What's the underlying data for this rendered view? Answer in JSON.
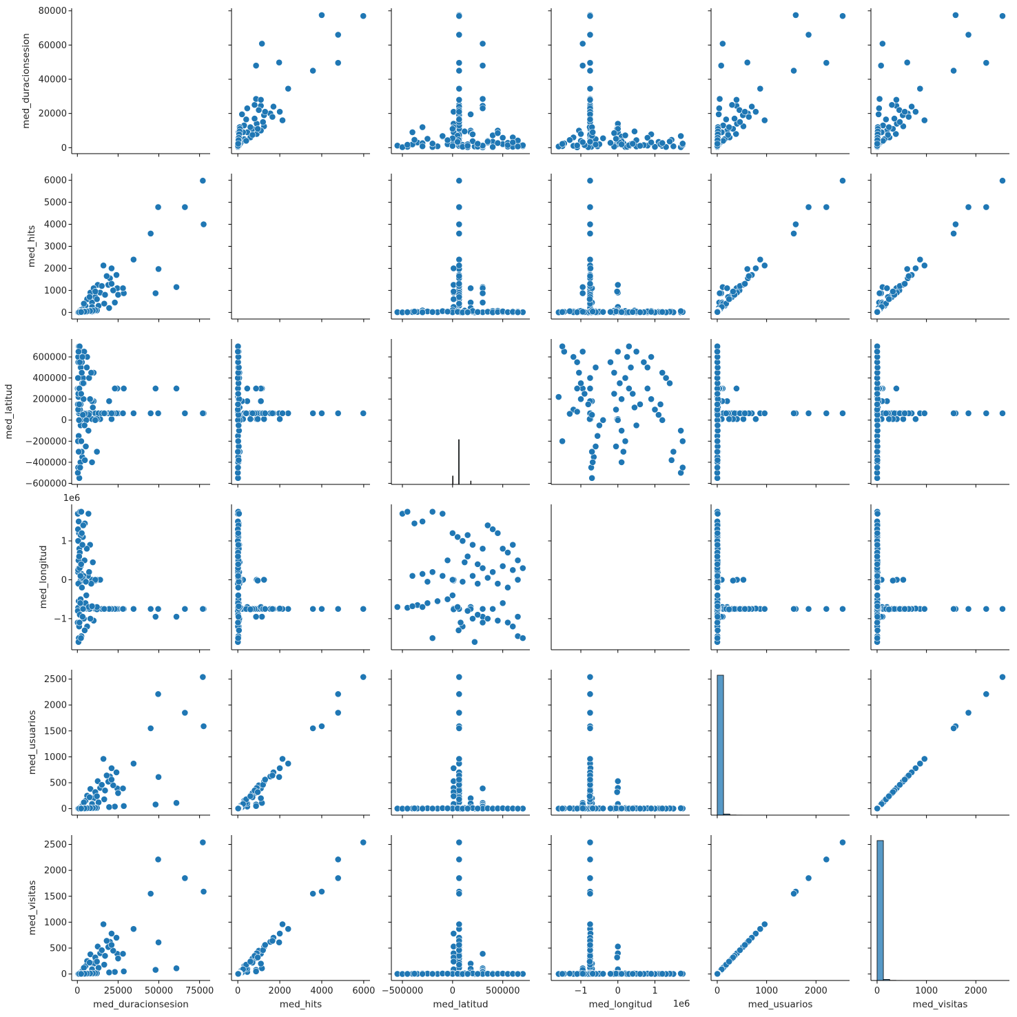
{
  "chart_data": {
    "type": "scatter",
    "title": "",
    "kind": "pairplot",
    "variables": [
      "med_duracionsesion",
      "med_hits",
      "med_latitud",
      "med_longitud",
      "med_usuarios",
      "med_visitas"
    ],
    "colors": {
      "marker": "#1f77b4",
      "marker_edge": "#ffffff",
      "hist": "#1f77b4"
    },
    "axes": {
      "med_duracionsesion": {
        "lim": [
          -3500,
          81500
        ],
        "xticks": [
          0,
          25000,
          50000,
          75000
        ],
        "xtick_labels": [
          "0",
          "25000",
          "50000",
          "75000"
        ],
        "yticks": [
          0,
          20000,
          40000,
          60000,
          80000
        ],
        "ytick_labels": [
          "0",
          "20000",
          "40000",
          "60000",
          "80000"
        ],
        "offset": ""
      },
      "med_hits": {
        "lim": [
          -300,
          6300
        ],
        "xticks": [
          0,
          2000,
          4000,
          6000
        ],
        "xtick_labels": [
          "0",
          "2000",
          "4000",
          "6000"
        ],
        "yticks": [
          0,
          1000,
          2000,
          3000,
          4000,
          5000,
          6000
        ],
        "ytick_labels": [
          "0",
          "1000",
          "2000",
          "3000",
          "4000",
          "5000",
          "6000"
        ],
        "offset": ""
      },
      "med_latitud": {
        "lim": [
          -610000,
          770000
        ],
        "xticks": [
          -500000,
          0,
          500000
        ],
        "xtick_labels": [
          "−500000",
          "0",
          "500000"
        ],
        "yticks": [
          -600000,
          -400000,
          -200000,
          0,
          200000,
          400000,
          600000
        ],
        "ytick_labels": [
          "−600000",
          "−400000",
          "−200000",
          "0",
          "200000",
          "400000",
          "600000"
        ],
        "offset": ""
      },
      "med_longitud": {
        "lim": [
          -1800000,
          1940000
        ],
        "xticks": [
          -1000000,
          0,
          1000000
        ],
        "xtick_labels": [
          "−1",
          "0",
          "1"
        ],
        "yticks": [
          -1000000,
          0,
          1000000
        ],
        "ytick_labels": [
          "−1",
          "0",
          "1"
        ],
        "offset": "1e6"
      },
      "med_usuarios": {
        "lim": [
          -125,
          2680
        ],
        "xticks": [
          0,
          1000,
          2000
        ],
        "xtick_labels": [
          "0",
          "1000",
          "2000"
        ],
        "yticks": [
          0,
          500,
          1000,
          1500,
          2000,
          2500
        ],
        "ytick_labels": [
          "0",
          "500",
          "1000",
          "1500",
          "2000",
          "2500"
        ],
        "offset": ""
      },
      "med_visitas": {
        "lim": [
          -125,
          2680
        ],
        "xticks": [
          0,
          1000,
          2000
        ],
        "xtick_labels": [
          "0",
          "1000",
          "2000"
        ],
        "yticks": [
          0,
          500,
          1000,
          1500,
          2000,
          2500
        ],
        "ytick_labels": [
          "0",
          "500",
          "1000",
          "1500",
          "2000",
          "2500"
        ],
        "offset": ""
      }
    },
    "diagonal_hist": {
      "med_latitud": {
        "ymax": 2600,
        "bins": [
          [
            60000,
            66000,
            800
          ],
          [
            0,
            5000,
            150
          ],
          [
            180000,
            184000,
            60
          ]
        ]
      },
      "med_usuarios": {
        "ymax": 5300,
        "bins": [
          [
            0,
            127,
            5100
          ],
          [
            127,
            254,
            40
          ],
          [
            254,
            381,
            6
          ],
          [
            381,
            508,
            3
          ]
        ]
      },
      "med_visitas": {
        "ymax": 5300,
        "bins": [
          [
            0,
            127,
            5100
          ],
          [
            127,
            254,
            40
          ],
          [
            254,
            381,
            6
          ],
          [
            381,
            508,
            3
          ]
        ]
      }
    },
    "columns": [
      "med_duracionsesion",
      "med_hits",
      "med_latitud",
      "med_longitud",
      "med_usuarios",
      "med_visitas"
    ],
    "records": [
      [
        77500,
        4000,
        65000,
        -750000,
        1590,
        1590
      ],
      [
        77000,
        5980,
        65000,
        -750000,
        2540,
        2540
      ],
      [
        66000,
        4780,
        65000,
        -750000,
        1850,
        1850
      ],
      [
        60800,
        1150,
        300000,
        -950000,
        110,
        110
      ],
      [
        49800,
        1970,
        65000,
        -750000,
        610,
        610
      ],
      [
        49600,
        4780,
        65000,
        -750000,
        2210,
        2210
      ],
      [
        48000,
        870,
        300000,
        -950000,
        80,
        80
      ],
      [
        45000,
        3580,
        65000,
        -750000,
        1550,
        1550
      ],
      [
        34500,
        2400,
        65000,
        -750000,
        870,
        870
      ],
      [
        24500,
        1100,
        300000,
        -750000,
        390,
        390
      ],
      [
        25000,
        800,
        65000,
        -750000,
        300,
        300
      ],
      [
        28500,
        870,
        300000,
        -750000,
        50,
        50
      ],
      [
        28000,
        1100,
        65000,
        -750000,
        390,
        390
      ],
      [
        16000,
        2130,
        65000,
        -750000,
        960,
        960
      ],
      [
        21000,
        2000,
        10000,
        -740000,
        780,
        780
      ],
      [
        24000,
        1700,
        65000,
        -750000,
        700,
        700
      ],
      [
        20000,
        1550,
        65000,
        -750000,
        620,
        620
      ],
      [
        12500,
        1250,
        10000,
        0,
        530,
        530
      ],
      [
        18000,
        1650,
        65000,
        -750000,
        640,
        640
      ],
      [
        22000,
        1000,
        65000,
        -750000,
        450,
        450
      ],
      [
        8000,
        900,
        65000,
        -750000,
        380,
        380
      ],
      [
        10000,
        1100,
        180000,
        -700000,
        200,
        200
      ],
      [
        6000,
        600,
        65000,
        -750000,
        250,
        250
      ],
      [
        14000,
        900,
        10000,
        0,
        400,
        400
      ],
      [
        23000,
        450,
        300000,
        -750000,
        40,
        40
      ],
      [
        19000,
        1250,
        65000,
        -750000,
        520,
        520
      ],
      [
        11000,
        700,
        65000,
        -750000,
        300,
        300
      ],
      [
        5000,
        300,
        65000,
        -750000,
        150,
        150
      ],
      [
        3000,
        150,
        10000,
        0,
        60,
        60
      ],
      [
        17000,
        800,
        65000,
        -750000,
        350,
        350
      ],
      [
        9000,
        450,
        180000,
        -700000,
        100,
        100
      ],
      [
        13000,
        300,
        65000,
        -750000,
        120,
        120
      ],
      [
        2000,
        100,
        0,
        0,
        30,
        30
      ],
      [
        15000,
        1200,
        65000,
        -750000,
        460,
        460
      ],
      [
        21000,
        1300,
        65000,
        -750000,
        560,
        560
      ],
      [
        11000,
        950,
        10000,
        -20000,
        320,
        320
      ],
      [
        7500,
        700,
        65000,
        -750000,
        220,
        220
      ],
      [
        4000,
        400,
        65000,
        -750000,
        120,
        120
      ],
      [
        19500,
        200,
        180000,
        -750000,
        30,
        30
      ],
      [
        16500,
        400,
        65000,
        -750000,
        180,
        180
      ],
      [
        9000,
        250,
        10000,
        0,
        90,
        90
      ],
      [
        1000,
        50,
        65000,
        -750000,
        15,
        15
      ],
      [
        12000,
        600,
        10000,
        -760000,
        240,
        240
      ],
      [
        1200,
        10,
        -550000,
        -700000,
        2,
        2
      ],
      [
        500,
        5,
        -450000,
        -720000,
        1,
        1
      ],
      [
        3000,
        20,
        -350000,
        -650000,
        3,
        3
      ],
      [
        5000,
        50,
        -250000,
        -600000,
        8,
        8
      ],
      [
        800,
        10,
        -150000,
        -550000,
        2,
        2
      ],
      [
        2000,
        30,
        -50000,
        -500000,
        5,
        5
      ],
      [
        7000,
        80,
        50000,
        -700000,
        10,
        10
      ],
      [
        300,
        2,
        150000,
        -800000,
        0,
        0
      ],
      [
        1500,
        15,
        250000,
        -900000,
        3,
        3
      ],
      [
        4000,
        40,
        350000,
        -1000000,
        6,
        6
      ],
      [
        10000,
        60,
        450000,
        -1050000,
        9,
        9
      ],
      [
        600,
        5,
        550000,
        -1100000,
        1,
        1
      ],
      [
        2500,
        25,
        650000,
        -1450000,
        4,
        4
      ],
      [
        900,
        8,
        700000,
        -1500000,
        2,
        2
      ],
      [
        6000,
        45,
        600000,
        -1200000,
        7,
        7
      ],
      [
        1800,
        12,
        500000,
        -600000,
        3,
        3
      ],
      [
        3500,
        35,
        400000,
        -750000,
        5,
        5
      ],
      [
        200,
        1,
        300000,
        -1100000,
        0,
        0
      ],
      [
        8000,
        70,
        200000,
        -1000000,
        12,
        12
      ],
      [
        1100,
        9,
        100000,
        -1200000,
        2,
        2
      ],
      [
        4500,
        55,
        60000,
        -1300000,
        8,
        8
      ],
      [
        700,
        4,
        220000,
        -1600000,
        1,
        1
      ],
      [
        2200,
        18,
        -200000,
        -1500000,
        3,
        3
      ],
      [
        12000,
        90,
        -300000,
        -700000,
        14,
        14
      ],
      [
        9000,
        40,
        -400000,
        -680000,
        6,
        6
      ],
      [
        5500,
        20,
        0,
        -400000,
        4,
        4
      ],
      [
        1300,
        10,
        80000,
        -1100000,
        2,
        2
      ],
      [
        3200,
        30,
        650000,
        -950000,
        5,
        5
      ],
      [
        2600,
        20,
        -300000,
        150000,
        3,
        3
      ],
      [
        400,
        3,
        -200000,
        200000,
        1,
        1
      ],
      [
        6500,
        60,
        -100000,
        100000,
        9,
        9
      ],
      [
        11000,
        100,
        0,
        0,
        15,
        15
      ],
      [
        1600,
        14,
        100000,
        -50000,
        3,
        3
      ],
      [
        3800,
        32,
        200000,
        100000,
        6,
        6
      ],
      [
        900,
        7,
        300000,
        300000,
        2,
        2
      ],
      [
        7200,
        65,
        400000,
        200000,
        10,
        10
      ],
      [
        2100,
        16,
        500000,
        350000,
        3,
        3
      ],
      [
        500,
        4,
        600000,
        250000,
        1,
        1
      ],
      [
        4200,
        38,
        650000,
        0,
        6,
        6
      ],
      [
        1400,
        11,
        700000,
        300000,
        2,
        2
      ],
      [
        8500,
        75,
        450000,
        -100000,
        12,
        12
      ],
      [
        3000,
        25,
        350000,
        50000,
        4,
        4
      ],
      [
        600,
        5,
        250000,
        -100000,
        1,
        1
      ],
      [
        5200,
        44,
        -250000,
        -50000,
        7,
        7
      ],
      [
        1900,
        15,
        -400000,
        100000,
        3,
        3
      ],
      [
        2800,
        22,
        550000,
        -200000,
        4,
        4
      ],
      [
        9500,
        85,
        120000,
        450000,
        13,
        13
      ],
      [
        300,
        2,
        -500000,
        1700000,
        0,
        0
      ],
      [
        1700,
        12,
        -450000,
        1750000,
        2,
        2
      ],
      [
        4600,
        40,
        -380000,
        1450000,
        6,
        6
      ],
      [
        800,
        6,
        -300000,
        1500000,
        1,
        1
      ],
      [
        2400,
        19,
        -200000,
        1750000,
        3,
        3
      ],
      [
        6800,
        58,
        -100000,
        1700000,
        9,
        9
      ],
      [
        1000,
        8,
        0,
        1200000,
        2,
        2
      ],
      [
        3400,
        28,
        50000,
        1100000,
        5,
        5
      ],
      [
        500,
        3,
        100000,
        1000000,
        1,
        1
      ],
      [
        2000,
        17,
        150000,
        1150000,
        3,
        3
      ],
      [
        7800,
        66,
        200000,
        900000,
        11,
        11
      ],
      [
        1200,
        9,
        300000,
        800000,
        2,
        2
      ],
      [
        3600,
        31,
        350000,
        1400000,
        5,
        5
      ],
      [
        400,
        3,
        400000,
        1300000,
        1,
        1
      ],
      [
        2700,
        21,
        450000,
        1200000,
        4,
        4
      ],
      [
        5800,
        48,
        500000,
        800000,
        8,
        8
      ],
      [
        1500,
        13,
        550000,
        700000,
        2,
        2
      ],
      [
        3100,
        26,
        600000,
        900000,
        4,
        4
      ],
      [
        700,
        5,
        650000,
        500000,
        1,
        1
      ],
      [
        4400,
        36,
        -50000,
        500000,
        6,
        6
      ],
      [
        1100,
        9,
        150000,
        600000,
        2,
        2
      ],
      [
        2300,
        18,
        250000,
        400000,
        3,
        3
      ]
    ]
  }
}
